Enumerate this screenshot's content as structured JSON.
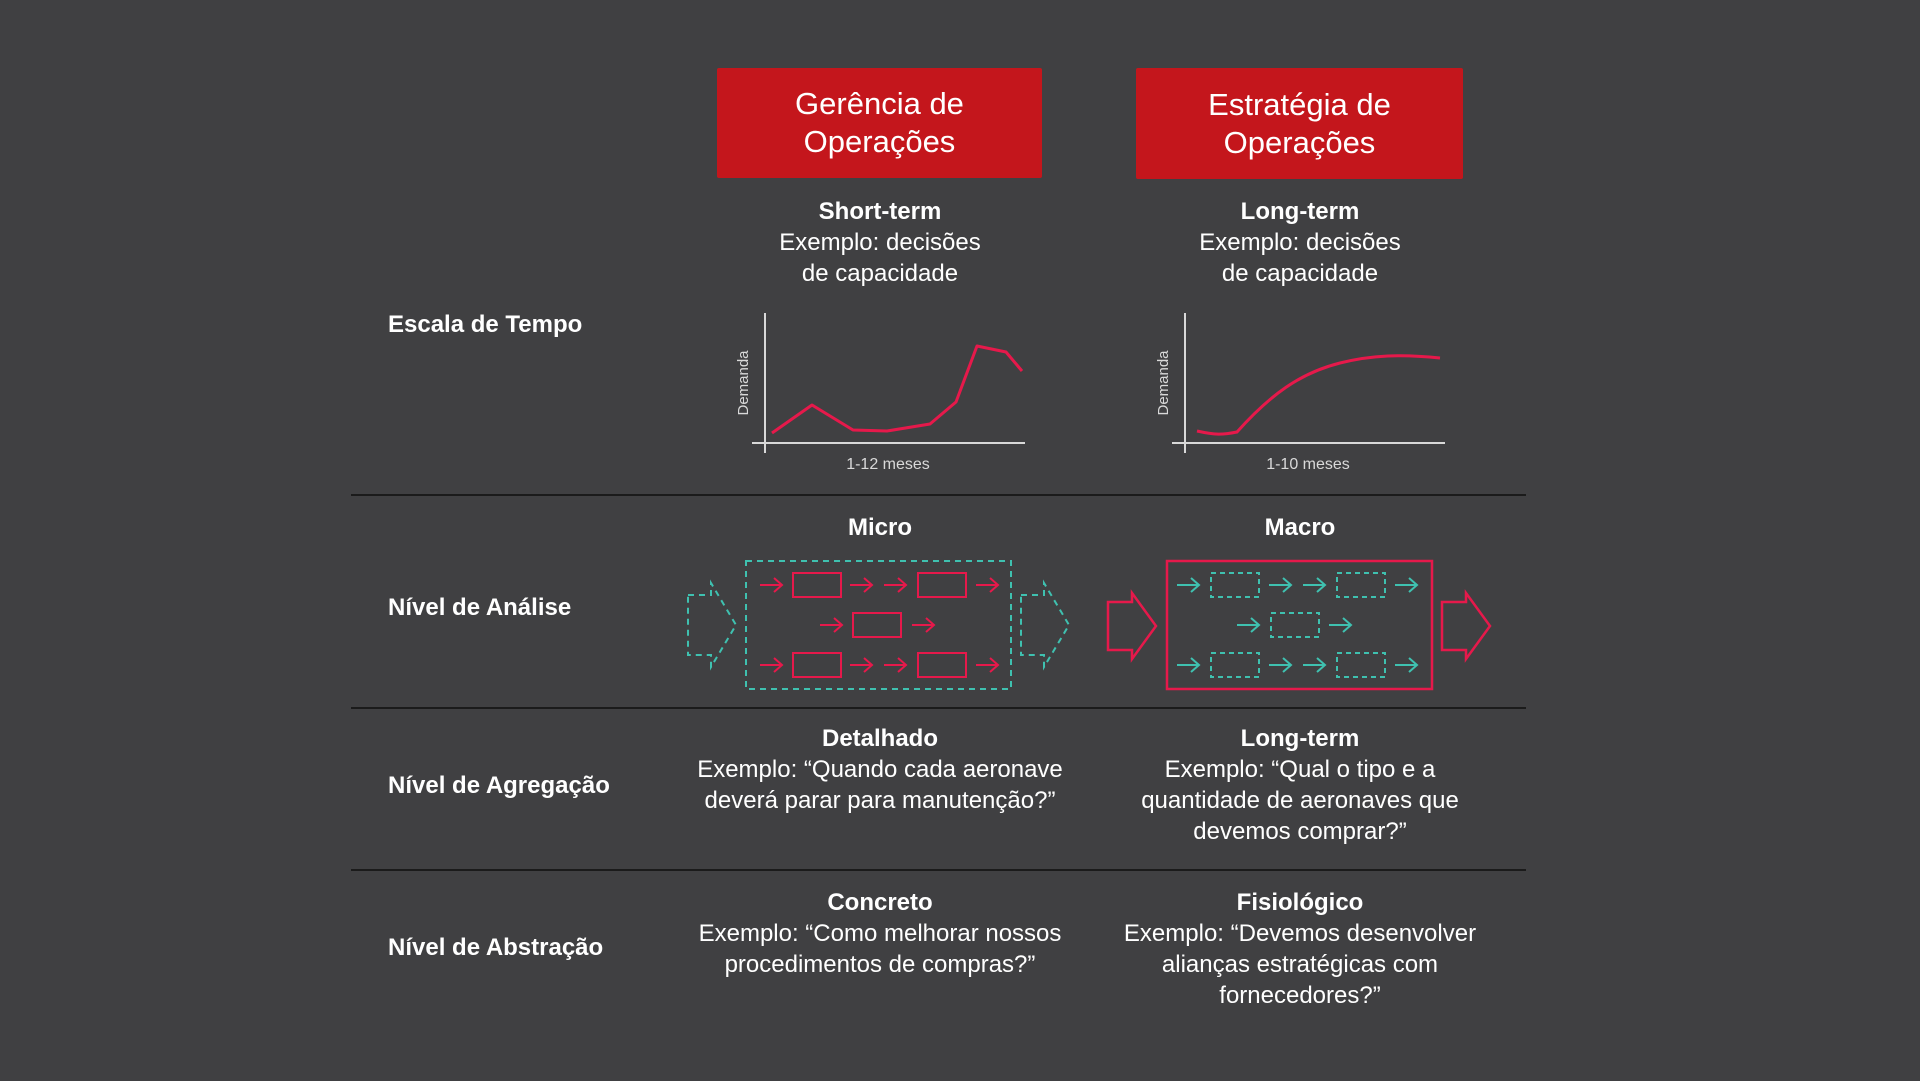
{
  "headers": {
    "left": "Gerência de\nOperações",
    "right": "Estratégia de\nOperações"
  },
  "rows": {
    "time": {
      "label": "Escala de Tempo",
      "left_title": "Short-term",
      "left_desc": "Exemplo: decisões\nde capacidade",
      "right_title": "Long-term",
      "right_desc": "Exemplo: decisões\nde capacidade"
    },
    "analysis": {
      "label": "Nível de Análise",
      "left_title": "Micro",
      "right_title": "Macro"
    },
    "aggregation": {
      "label": "Nível de Agregação",
      "left_title": "Detalhado",
      "left_desc": "Exemplo: “Quando cada aeronave\ndeverá parar para manutenção?”",
      "right_title": "Long-term",
      "right_desc": "Exemplo: “Qual o tipo e a\nquantidade de aeronaves que\ndevemos comprar?”"
    },
    "abstraction": {
      "label": "Nível de Abstração",
      "left_title": "Concreto",
      "left_desc": "Exemplo: “Como melhorar nossos\nprocedimentos de compras?”",
      "right_title": "Fisiológico",
      "right_desc": "Exemplo: “Devemos desenvolver\nalianças estratégicas com\nfornecedores?”"
    }
  },
  "charts": {
    "left": {
      "ylabel": "Demanda",
      "xlabel": "1-12 meses"
    },
    "right": {
      "ylabel": "Demanda",
      "xlabel": "1-10 meses"
    }
  },
  "colors": {
    "accent_red": "#c4161c",
    "line_pink": "#e6194b",
    "teal": "#3fc1b0",
    "background": "#404042"
  }
}
